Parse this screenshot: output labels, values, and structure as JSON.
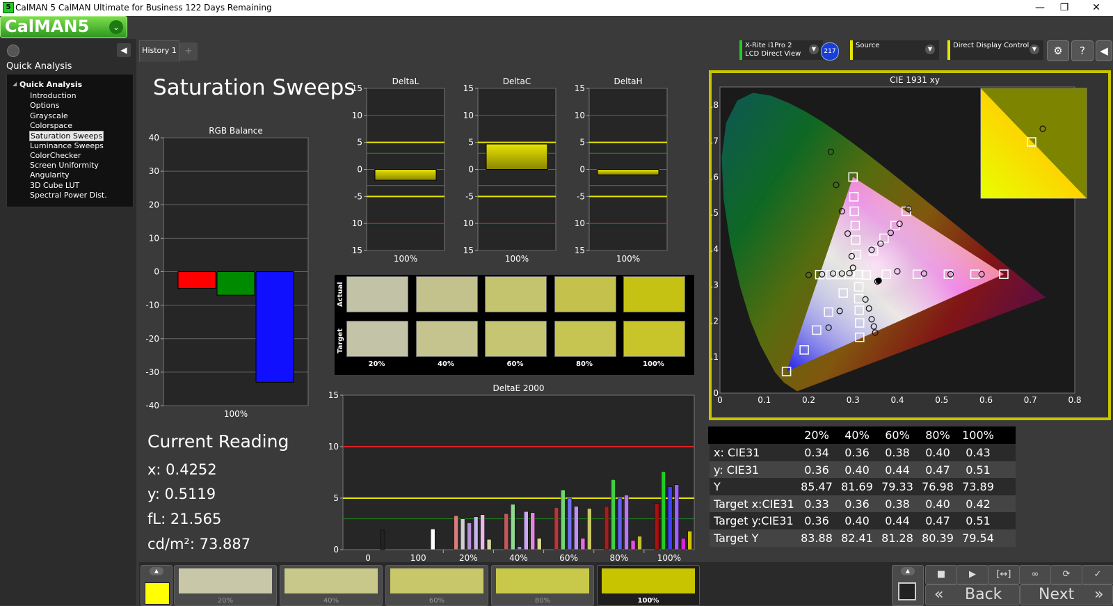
{
  "window": {
    "title": "CalMAN 5 CalMAN Ultimate for Business 122 Days Remaining",
    "app_icon": "5",
    "minimize": "—",
    "maximize": "❐",
    "close": "✕"
  },
  "logo": {
    "text": "CalMAN5",
    "dropdown_glyph": "⌄"
  },
  "sidebar": {
    "section_title": "Quick Analysis",
    "tree_root": "Quick Analysis",
    "items": [
      {
        "label": "Introduction"
      },
      {
        "label": "Options"
      },
      {
        "label": "Grayscale"
      },
      {
        "label": "Colorspace"
      },
      {
        "label": "Saturation Sweeps",
        "selected": true
      },
      {
        "label": "Luminance Sweeps"
      },
      {
        "label": "ColorChecker"
      },
      {
        "label": "Screen Uniformity"
      },
      {
        "label": "Angularity"
      },
      {
        "label": "3D Cube LUT"
      },
      {
        "label": "Spectral Power Dist."
      }
    ]
  },
  "tabs": [
    {
      "label": "History 1"
    },
    {
      "label": "+"
    }
  ],
  "toolbar": {
    "meter_line1": "X-Rite i1Pro 2",
    "meter_line2": "LCD Direct View",
    "meter_badge": "217",
    "source_label": "Source",
    "display_label": "Direct Display Control",
    "settings_icon": "⚙",
    "help_icon": "?",
    "collapse_icon": "◀",
    "colors": {
      "meter": "#22cc22",
      "source": "#e6e600",
      "display": "#e6e600"
    }
  },
  "page_title": "Saturation Sweeps",
  "chart_data": [
    {
      "type": "bar",
      "title": "RGB Balance",
      "categories": [
        "100%"
      ],
      "series": [
        {
          "name": "Red",
          "values": [
            -5
          ],
          "color": "#ff0000"
        },
        {
          "name": "Green",
          "values": [
            -7
          ],
          "color": "#008a00"
        },
        {
          "name": "Blue",
          "values": [
            -33
          ],
          "color": "#1010ff"
        }
      ],
      "ylim": [
        -40,
        40
      ],
      "yticks": [
        "40",
        "30",
        "20",
        "10",
        "0",
        "-10",
        "-20",
        "-30",
        "-40"
      ]
    },
    {
      "type": "bar",
      "title": "DeltaL",
      "categories": [
        "100%"
      ],
      "values": [
        -2
      ],
      "ylim": [
        -15,
        15
      ],
      "yticks": [
        "15",
        "10",
        "5",
        "0",
        "-5",
        "-10",
        "-15"
      ]
    },
    {
      "type": "bar",
      "title": "DeltaC",
      "categories": [
        "100%"
      ],
      "values": [
        4.7
      ],
      "ylim": [
        -15,
        15
      ],
      "yticks": [
        "15",
        "10",
        "5",
        "0",
        "-5",
        "-10",
        "-15"
      ]
    },
    {
      "type": "bar",
      "title": "DeltaH",
      "categories": [
        "100%"
      ],
      "values": [
        -1
      ],
      "ylim": [
        -15,
        15
      ],
      "yticks": [
        "15",
        "10",
        "5",
        "0",
        "-5",
        "-10",
        "-15"
      ]
    },
    {
      "type": "bar",
      "title": "DeltaE 2000",
      "categories": [
        "0",
        "100",
        "20%",
        "40%",
        "60%",
        "80%",
        "100%"
      ],
      "ylim": [
        0,
        15
      ],
      "yticks": [
        "15",
        "10",
        "5",
        "0"
      ],
      "groups": [
        {
          "label": "0",
          "values": [
            1.9
          ],
          "colors": [
            "#222222"
          ]
        },
        {
          "label": "100",
          "values": [
            2.0
          ],
          "colors": [
            "#ffffff"
          ]
        },
        {
          "label": "20%",
          "values": [
            3.3,
            3.0,
            2.6,
            3.2,
            3.4,
            1.0
          ],
          "colors": [
            "#d87c7c",
            "#cfcfcf",
            "#b88fd8",
            "#c4b4e8",
            "#e8b8e8",
            "#d8d8a0"
          ]
        },
        {
          "label": "40%",
          "values": [
            3.5,
            4.4,
            0.3,
            3.7,
            3.6,
            1.1
          ],
          "colors": [
            "#c05a5a",
            "#8fd88f",
            "#9090e8",
            "#c8a8f0",
            "#e088e0",
            "#d8d890"
          ]
        },
        {
          "label": "60%",
          "values": [
            4.1,
            5.8,
            5.0,
            4.2,
            1.1,
            4.0
          ],
          "colors": [
            "#b03a3a",
            "#70d870",
            "#7070ee",
            "#c090f0",
            "#e070e0",
            "#c8c860"
          ]
        },
        {
          "label": "80%",
          "values": [
            4.2,
            6.8,
            5.0,
            5.3,
            0.9,
            1.3
          ],
          "colors": [
            "#a02020",
            "#40d040",
            "#6060f0",
            "#b878f0",
            "#e050e0",
            "#c0c030"
          ]
        },
        {
          "label": "100%",
          "values": [
            4.5,
            7.6,
            6.1,
            6.3,
            1.1,
            1.8
          ],
          "colors": [
            "#aa1010",
            "#22cc22",
            "#4040ff",
            "#a060ff",
            "#dd22dd",
            "#d0c000"
          ]
        }
      ],
      "thresholds": [
        {
          "value": 10,
          "color": "#dd2222"
        },
        {
          "value": 5,
          "color": "#e6e600"
        },
        {
          "value": 3,
          "color": "#1a8a1a"
        }
      ]
    },
    {
      "type": "scatter",
      "title": "CIE 1931 xy",
      "xlim": [
        0,
        0.8
      ],
      "ylim": [
        0,
        0.85
      ],
      "xticks": [
        "0",
        "0.1",
        "0.2",
        "0.3",
        "0.4",
        "0.5",
        "0.6",
        "0.7",
        "0.8"
      ],
      "yticks": [
        "0",
        "0.1",
        "0.2",
        "0.3",
        "0.4",
        "0.5",
        "0.6",
        "0.7",
        "0.8"
      ],
      "targets": [
        [
          0.3127,
          0.329
        ],
        [
          0.3,
          0.6
        ],
        [
          0.302,
          0.545
        ],
        [
          0.303,
          0.505
        ],
        [
          0.305,
          0.465
        ],
        [
          0.306,
          0.425
        ],
        [
          0.308,
          0.385
        ],
        [
          0.15,
          0.06
        ],
        [
          0.19,
          0.12
        ],
        [
          0.218,
          0.175
        ],
        [
          0.245,
          0.225
        ],
        [
          0.278,
          0.278
        ],
        [
          0.33,
          0.328
        ],
        [
          0.64,
          0.33
        ],
        [
          0.575,
          0.33
        ],
        [
          0.515,
          0.33
        ],
        [
          0.445,
          0.33
        ],
        [
          0.375,
          0.33
        ],
        [
          0.315,
          0.155
        ],
        [
          0.315,
          0.195
        ],
        [
          0.314,
          0.23
        ],
        [
          0.313,
          0.262
        ],
        [
          0.313,
          0.295
        ],
        [
          0.42,
          0.505
        ],
        [
          0.395,
          0.465
        ],
        [
          0.37,
          0.43
        ],
        [
          0.346,
          0.395
        ],
        [
          0.225,
          0.329
        ],
        [
          0.25,
          0.329
        ],
        [
          0.272,
          0.329
        ],
        [
          0.292,
          0.329
        ]
      ],
      "actuals": [
        [
          0.355,
          0.31
        ],
        [
          0.25,
          0.67
        ],
        [
          0.262,
          0.578
        ],
        [
          0.275,
          0.505
        ],
        [
          0.288,
          0.443
        ],
        [
          0.297,
          0.38
        ],
        [
          0.3,
          0.348
        ],
        [
          0.2,
          0.328
        ],
        [
          0.23,
          0.33
        ],
        [
          0.255,
          0.332
        ],
        [
          0.275,
          0.332
        ],
        [
          0.292,
          0.333
        ],
        [
          0.328,
          0.26
        ],
        [
          0.336,
          0.235
        ],
        [
          0.342,
          0.205
        ],
        [
          0.347,
          0.185
        ],
        [
          0.35,
          0.168
        ],
        [
          0.425,
          0.512
        ],
        [
          0.405,
          0.47
        ],
        [
          0.385,
          0.445
        ],
        [
          0.362,
          0.415
        ],
        [
          0.342,
          0.398
        ],
        [
          0.4,
          0.338
        ],
        [
          0.46,
          0.332
        ],
        [
          0.52,
          0.33
        ],
        [
          0.59,
          0.33
        ],
        [
          0.27,
          0.228
        ],
        [
          0.245,
          0.182
        ]
      ],
      "whitepoint": [
        0.3127,
        0.329
      ],
      "measured_point": [
        0.358,
        0.312
      ]
    }
  ],
  "swatches": {
    "actual_label": "Actual",
    "target_label": "Target",
    "columns": [
      {
        "label": "20%",
        "actual": "#c2c2a6",
        "target": "#c3c3a8"
      },
      {
        "label": "40%",
        "actual": "#c3c28c",
        "target": "#c5c48e"
      },
      {
        "label": "60%",
        "actual": "#c5c46e",
        "target": "#c6c571"
      },
      {
        "label": "80%",
        "actual": "#c4c24d",
        "target": "#c7c552"
      },
      {
        "label": "100%",
        "actual": "#c5c214",
        "target": "#c8c52a"
      }
    ]
  },
  "current_reading": {
    "title": "Current Reading",
    "x": "x: 0.4252",
    "y": "y: 0.5119",
    "fl": "fL: 21.565",
    "cd": "cd/m²: 73.887"
  },
  "data_table": {
    "headers": [
      "20%",
      "40%",
      "60%",
      "80%",
      "100%"
    ],
    "rows": [
      {
        "label": "x: CIE31",
        "values": [
          "0.34",
          "0.36",
          "0.38",
          "0.40",
          "0.43"
        ]
      },
      {
        "label": "y: CIE31",
        "values": [
          "0.36",
          "0.40",
          "0.44",
          "0.47",
          "0.51"
        ]
      },
      {
        "label": "Y",
        "values": [
          "85.47",
          "81.69",
          "79.33",
          "76.98",
          "73.89"
        ]
      },
      {
        "label": "Target x:CIE31",
        "values": [
          "0.33",
          "0.36",
          "0.38",
          "0.40",
          "0.42"
        ]
      },
      {
        "label": "Target y:CIE31",
        "values": [
          "0.36",
          "0.40",
          "0.44",
          "0.47",
          "0.51"
        ]
      },
      {
        "label": "Target Y",
        "values": [
          "83.88",
          "82.41",
          "81.28",
          "80.39",
          "79.54"
        ]
      }
    ]
  },
  "bottom": {
    "current_color": "#ffff00",
    "swatches": [
      {
        "label": "20%",
        "color": "#c8c8a8",
        "active": false
      },
      {
        "label": "40%",
        "color": "#c8c88a",
        "active": false
      },
      {
        "label": "60%",
        "color": "#c8c86a",
        "active": false
      },
      {
        "label": "80%",
        "color": "#c8c84a",
        "active": false
      },
      {
        "label": "100%",
        "color": "#c8c400",
        "active": true
      }
    ],
    "back_label": "Back",
    "next_label": "Next",
    "back_icon": "«",
    "next_icon": "»",
    "controls": [
      "■",
      "▶",
      "[↔]",
      "∞",
      "⟳",
      "✓"
    ]
  }
}
